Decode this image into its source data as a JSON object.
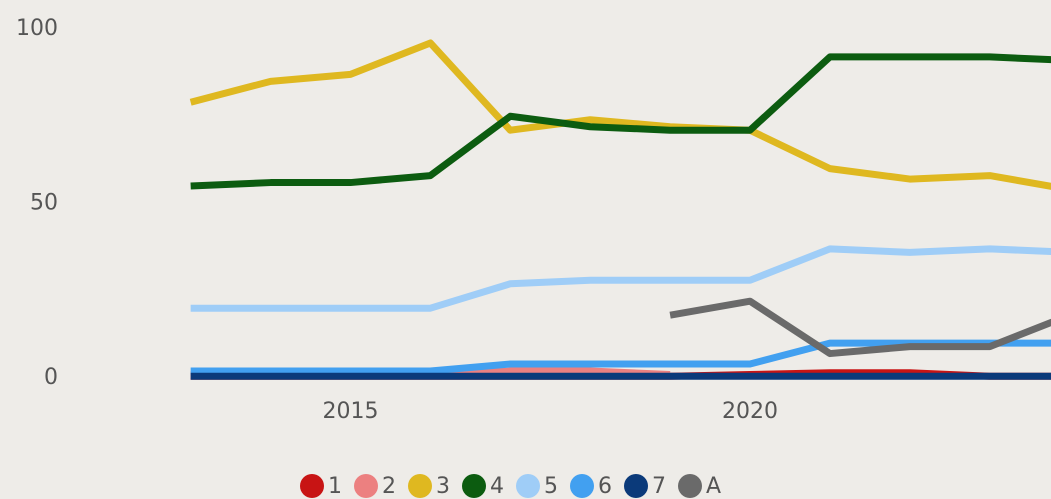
{
  "chart_data": {
    "type": "line",
    "x": [
      2013,
      2014,
      2015,
      2016,
      2017,
      2018,
      2019,
      2020,
      2021,
      2022,
      2023,
      2024
    ],
    "xlim": [
      2012.5,
      2023.8
    ],
    "xticks": [
      2015,
      2020
    ],
    "ylim": [
      0,
      100
    ],
    "yticks": [
      0,
      50,
      100
    ],
    "series": [
      {
        "name": "1",
        "color": "#c81414",
        "values": [
          0.5,
          0.5,
          0.5,
          0.5,
          0.5,
          0.5,
          0.5,
          1,
          1.5,
          1.5,
          0.5,
          0.5
        ]
      },
      {
        "name": "2",
        "color": "#ec8080",
        "values": [
          1,
          1,
          1,
          1,
          2,
          2,
          1,
          null,
          null,
          null,
          null,
          null
        ]
      },
      {
        "name": "3",
        "color": "#dfb820",
        "values": [
          79,
          85,
          87,
          96,
          71,
          74,
          72,
          71,
          60,
          57,
          58,
          54
        ]
      },
      {
        "name": "4",
        "color": "#0c5c10",
        "values": [
          55,
          56,
          56,
          58,
          75,
          72,
          71,
          71,
          92,
          92,
          92,
          91
        ]
      },
      {
        "name": "5",
        "color": "#9fcdf7",
        "values": [
          20,
          20,
          20,
          20,
          27,
          28,
          28,
          28,
          37,
          36,
          37,
          36
        ]
      },
      {
        "name": "6",
        "color": "#42a0f0",
        "values": [
          2,
          2,
          2,
          2,
          4,
          4,
          4,
          4,
          10,
          10,
          10,
          10
        ]
      },
      {
        "name": "7",
        "color": "#0b3a7a",
        "values": [
          0.5,
          0.5,
          0.5,
          0.5,
          0.5,
          0.5,
          0.5,
          0.5,
          0.5,
          0.5,
          0.5,
          0.5
        ]
      },
      {
        "name": "A",
        "color": "#6a6a6a",
        "values": [
          null,
          null,
          null,
          null,
          null,
          null,
          18,
          22,
          7,
          9,
          9,
          18
        ]
      }
    ]
  }
}
